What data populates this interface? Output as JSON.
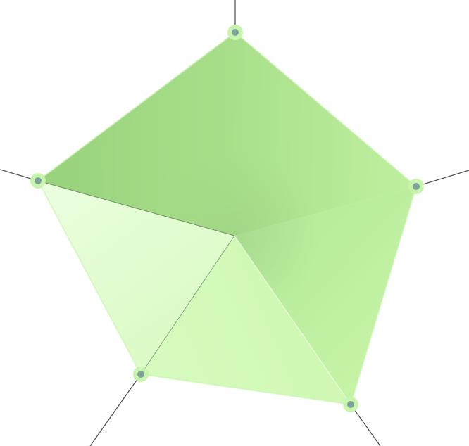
{
  "diagram": {
    "kind": "pentagonal radar / spider shape",
    "vertex_count": 5,
    "colors": {
      "background": "#ffffff",
      "spoke": "#4a4a4a",
      "facet_top": "#9fd884",
      "facet_right": "#c3f2a1",
      "facet_bottom": "#d3fbb8",
      "facet_left": "#e6fdd6",
      "center_tone": "#b8eb9b",
      "vertex_ring": "#c8f5ad",
      "vertex_dot": "#7fa39a",
      "inner_line": "#6f8a66"
    }
  }
}
